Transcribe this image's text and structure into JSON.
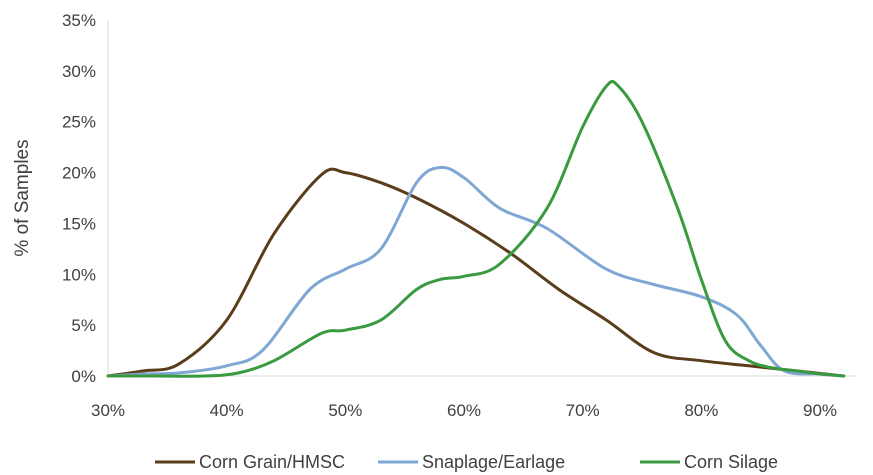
{
  "chart_data": {
    "type": "line",
    "title": "",
    "xlabel": "",
    "ylabel": "% of Samples",
    "xlim": [
      30,
      90
    ],
    "ylim": [
      0,
      35
    ],
    "xticks": [
      "30%",
      "40%",
      "50%",
      "60%",
      "70%",
      "80%",
      "90%"
    ],
    "yticks": [
      "0%",
      "5%",
      "10%",
      "15%",
      "20%",
      "25%",
      "30%",
      "35%"
    ],
    "grid": false,
    "legend_position": "bottom",
    "series": [
      {
        "name": "Corn Grain/HMSC",
        "color": "#5a3e1b",
        "x": [
          30,
          33,
          36,
          40,
          44,
          48,
          50,
          53,
          56,
          60,
          64,
          68,
          72,
          76,
          80,
          84,
          88,
          92
        ],
        "y": [
          0,
          0.5,
          1.2,
          5.5,
          14,
          19.8,
          20,
          19,
          17.5,
          15,
          12,
          8.5,
          5.5,
          2.3,
          1.5,
          1.0,
          0.5,
          0
        ]
      },
      {
        "name": "Snaplage/Earlage",
        "color": "#7fa7d4",
        "x": [
          30,
          33,
          36,
          40,
          43,
          47,
          50,
          53,
          56,
          58,
          60,
          63,
          67,
          72,
          76,
          80,
          83,
          85,
          87,
          90,
          92
        ],
        "y": [
          0,
          0.2,
          0.3,
          1.0,
          2.5,
          8.5,
          10.5,
          12.5,
          19,
          20.5,
          19.5,
          16.5,
          14.5,
          10.5,
          9,
          7.8,
          6,
          3,
          0.5,
          0.2,
          0
        ]
      },
      {
        "name": "Corn Silage",
        "color": "#3a9a40",
        "x": [
          30,
          34,
          38,
          41,
          44,
          48,
          50,
          53,
          56,
          58,
          60,
          63,
          67,
          70,
          72,
          73,
          75,
          78,
          80,
          82,
          84,
          86,
          88,
          90,
          92
        ],
        "y": [
          0,
          0,
          0,
          0.3,
          1.5,
          4.2,
          4.5,
          5.5,
          8.5,
          9.5,
          9.8,
          11,
          16.5,
          24.5,
          28.5,
          28.5,
          25,
          16.5,
          9.5,
          3.5,
          1.5,
          0.8,
          0.5,
          0.2,
          0
        ]
      }
    ]
  }
}
